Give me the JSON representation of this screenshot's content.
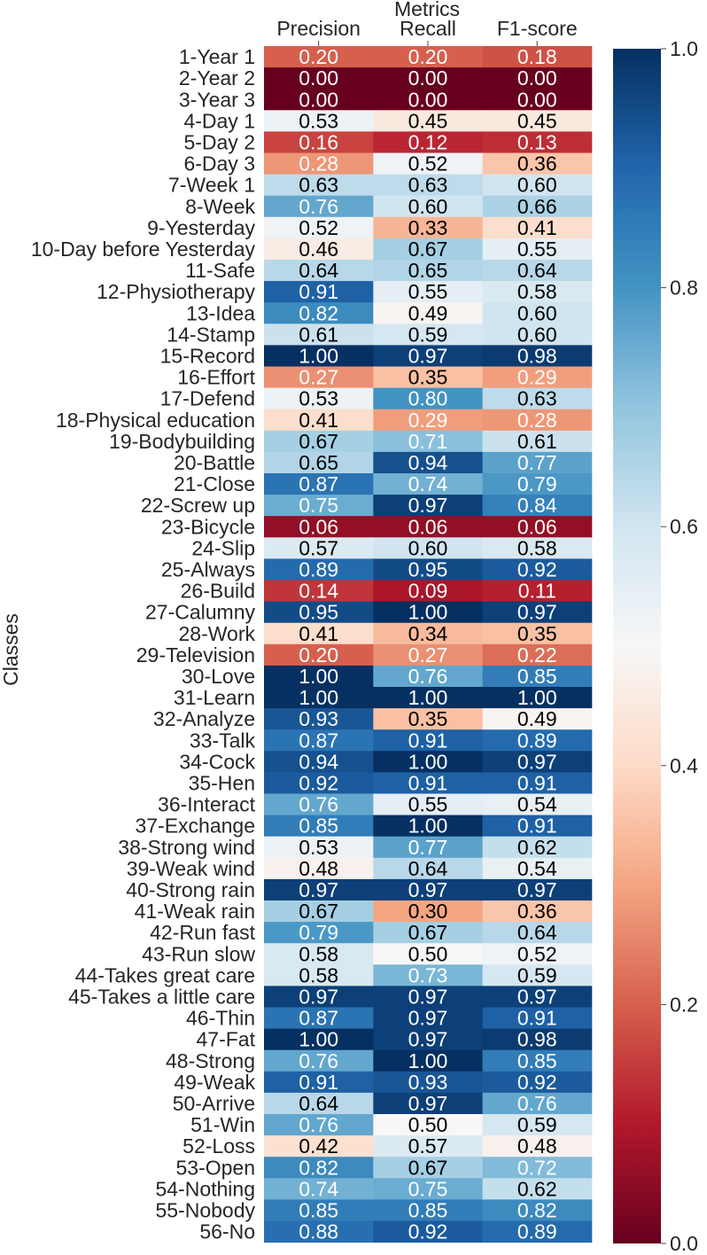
{
  "chart_data": {
    "type": "heatmap",
    "title": "",
    "xlabel": "Metrics",
    "ylabel": "Classes",
    "columns": [
      "Precision",
      "Recall",
      "F1-score"
    ],
    "rows": [
      "1-Year 1",
      "2-Year 2",
      "3-Year 3",
      "4-Day 1",
      "5-Day 2",
      "6-Day 3",
      "7-Week 1",
      "8-Week",
      "9-Yesterday",
      "10-Day before Yesterday",
      "11-Safe",
      "12-Physiotherapy",
      "13-Idea",
      "14-Stamp",
      "15-Record",
      "16-Effort",
      "17-Defend",
      "18-Physical education",
      "19-Bodybuilding",
      "20-Battle",
      "21-Close",
      "22-Screw up",
      "23-Bicycle",
      "24-Slip",
      "25-Always",
      "26-Build",
      "27-Calumny",
      "28-Work",
      "29-Television",
      "30-Love",
      "31-Learn",
      "32-Analyze",
      "33-Talk",
      "34-Cock",
      "35-Hen",
      "36-Interact",
      "37-Exchange",
      "38-Strong wind",
      "39-Weak wind",
      "40-Strong rain",
      "41-Weak rain",
      "42-Run fast",
      "43-Run slow",
      "44-Takes great care",
      "45-Takes a little care",
      "46-Thin",
      "47-Fat",
      "48-Strong",
      "49-Weak",
      "50-Arrive",
      "51-Win",
      "52-Loss",
      "53-Open",
      "54-Nothing",
      "55-Nobody",
      "56-No"
    ],
    "values": [
      [
        0.2,
        0.2,
        0.18
      ],
      [
        0.0,
        0.0,
        0.0
      ],
      [
        0.0,
        0.0,
        0.0
      ],
      [
        0.53,
        0.45,
        0.45
      ],
      [
        0.16,
        0.12,
        0.13
      ],
      [
        0.28,
        0.52,
        0.36
      ],
      [
        0.63,
        0.63,
        0.6
      ],
      [
        0.76,
        0.6,
        0.66
      ],
      [
        0.52,
        0.33,
        0.41
      ],
      [
        0.46,
        0.67,
        0.55
      ],
      [
        0.64,
        0.65,
        0.64
      ],
      [
        0.91,
        0.55,
        0.58
      ],
      [
        0.82,
        0.49,
        0.6
      ],
      [
        0.61,
        0.59,
        0.6
      ],
      [
        1.0,
        0.97,
        0.98
      ],
      [
        0.27,
        0.35,
        0.29
      ],
      [
        0.53,
        0.8,
        0.63
      ],
      [
        0.41,
        0.29,
        0.28
      ],
      [
        0.67,
        0.71,
        0.61
      ],
      [
        0.65,
        0.94,
        0.77
      ],
      [
        0.87,
        0.74,
        0.79
      ],
      [
        0.75,
        0.97,
        0.84
      ],
      [
        0.06,
        0.06,
        0.06
      ],
      [
        0.57,
        0.6,
        0.58
      ],
      [
        0.89,
        0.95,
        0.92
      ],
      [
        0.14,
        0.09,
        0.11
      ],
      [
        0.95,
        1.0,
        0.97
      ],
      [
        0.41,
        0.34,
        0.35
      ],
      [
        0.2,
        0.27,
        0.22
      ],
      [
        1.0,
        0.76,
        0.85
      ],
      [
        1.0,
        1.0,
        1.0
      ],
      [
        0.93,
        0.35,
        0.49
      ],
      [
        0.87,
        0.91,
        0.89
      ],
      [
        0.94,
        1.0,
        0.97
      ],
      [
        0.92,
        0.91,
        0.91
      ],
      [
        0.76,
        0.55,
        0.54
      ],
      [
        0.85,
        1.0,
        0.91
      ],
      [
        0.53,
        0.77,
        0.62
      ],
      [
        0.48,
        0.64,
        0.54
      ],
      [
        0.97,
        0.97,
        0.97
      ],
      [
        0.67,
        0.3,
        0.36
      ],
      [
        0.79,
        0.67,
        0.64
      ],
      [
        0.58,
        0.5,
        0.52
      ],
      [
        0.58,
        0.73,
        0.59
      ],
      [
        0.97,
        0.97,
        0.97
      ],
      [
        0.87,
        0.97,
        0.91
      ],
      [
        1.0,
        0.97,
        0.98
      ],
      [
        0.76,
        1.0,
        0.85
      ],
      [
        0.91,
        0.93,
        0.92
      ],
      [
        0.64,
        0.97,
        0.76
      ],
      [
        0.76,
        0.5,
        0.59
      ],
      [
        0.42,
        0.57,
        0.48
      ],
      [
        0.82,
        0.67,
        0.72
      ],
      [
        0.74,
        0.75,
        0.62
      ],
      [
        0.85,
        0.85,
        0.82
      ],
      [
        0.88,
        0.92,
        0.89
      ]
    ],
    "colormap": "RdBu",
    "colorbar": {
      "min": 0.0,
      "max": 1.0,
      "ticks": [
        "0.0",
        "0.2",
        "0.4",
        "0.6",
        "0.8",
        "1.0"
      ]
    },
    "grid": false,
    "legend": "colorbar-right"
  }
}
